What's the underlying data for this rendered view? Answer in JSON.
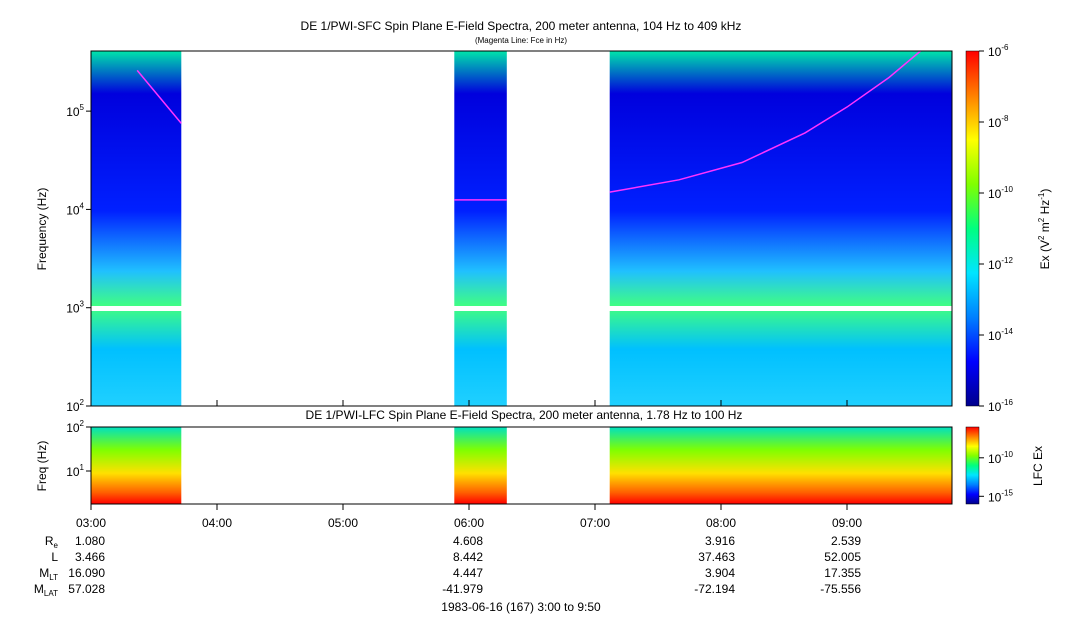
{
  "chart_data": [
    {
      "type": "heatmap",
      "title": "DE 1/PWI-SFC  Spin Plane E-Field Spectra, 200 meter antenna, 104 Hz to 409 kHz",
      "subtitle": "(Magenta Line: Fce in Hz)",
      "ylabel": "Frequency (Hz)",
      "y_scale": "log",
      "ylim": [
        100,
        409000
      ],
      "y_tick_labels": [
        {
          "base": "10",
          "exp": "2",
          "value": 100
        },
        {
          "base": "10",
          "exp": "3",
          "value": 1000
        },
        {
          "base": "10",
          "exp": "4",
          "value": 10000
        },
        {
          "base": "10",
          "exp": "5",
          "value": 100000
        }
      ],
      "xlim": [
        "03:00",
        "09:50"
      ],
      "data_coverage": [
        [
          "03:00",
          "03:43"
        ],
        [
          "05:53",
          "06:18"
        ],
        [
          "07:07",
          "09:50"
        ]
      ],
      "fce_line": {
        "color": "#ff33ff",
        "segments": [
          {
            "x": [
              "03:22",
              "03:43"
            ],
            "y": [
              260000,
              75000
            ]
          },
          {
            "x": [
              "05:53",
              "06:18"
            ],
            "y": [
              12500,
              12500
            ]
          },
          {
            "x": [
              "07:07",
              "07:40",
              "08:10",
              "08:40",
              "09:00",
              "09:20",
              "09:35"
            ],
            "y": [
              15000,
              20000,
              30000,
              60000,
              110000,
              220000,
              409000
            ]
          }
        ]
      },
      "colorbar": {
        "label": "Ex (V",
        "label_sup1": "2",
        "label_mid": " m",
        "label_sup2": "2",
        "label_mid2": " Hz",
        "label_sup3": "-1",
        "label_end": ")",
        "scale": "log",
        "range": [
          1e-16,
          1e-06
        ],
        "tick_labels": [
          {
            "base": "10",
            "exp": "-6",
            "value": 1e-06
          },
          {
            "base": "10",
            "exp": "-8",
            "value": 1e-08
          },
          {
            "base": "10",
            "exp": "-10",
            "value": 1e-10
          },
          {
            "base": "10",
            "exp": "-12",
            "value": 1e-12
          },
          {
            "base": "10",
            "exp": "-14",
            "value": 1e-14
          },
          {
            "base": "10",
            "exp": "-16",
            "value": 1e-16
          }
        ],
        "colormap": [
          "#00008b",
          "#0000ff",
          "#0080ff",
          "#00e5ff",
          "#00ff80",
          "#80ff00",
          "#ffff00",
          "#ff8000",
          "#ff0000"
        ]
      }
    },
    {
      "type": "heatmap",
      "title": "DE 1/PWI-LFC  Spin Plane E-Field Spectra, 200 meter antenna, 1.78 Hz to 100 Hz",
      "ylabel": "Freq (Hz)",
      "y_scale": "log",
      "ylim": [
        1.78,
        100
      ],
      "y_tick_labels": [
        {
          "base": "10",
          "exp": "1",
          "value": 10
        },
        {
          "base": "10",
          "exp": "2",
          "value": 100
        }
      ],
      "xlim": [
        "03:00",
        "09:50"
      ],
      "data_coverage": [
        [
          "03:00",
          "03:43"
        ],
        [
          "05:53",
          "06:18"
        ],
        [
          "07:07",
          "09:50"
        ]
      ],
      "colorbar": {
        "label": "LFC Ex",
        "scale": "log",
        "range": [
          1e-16,
          1e-06
        ],
        "tick_labels": [
          {
            "base": "10",
            "exp": "-10",
            "value": 1e-10
          },
          {
            "base": "10",
            "exp": "-15",
            "value": 1e-15
          }
        ]
      },
      "x_tick_labels": [
        "03:00",
        "04:00",
        "05:00",
        "06:00",
        "07:00",
        "08:00",
        "09:00"
      ]
    }
  ],
  "ephemeris": {
    "rows": [
      {
        "label": "R",
        "sub": "e",
        "values": [
          "1.080",
          "4.608",
          "3.916",
          "2.539"
        ]
      },
      {
        "label": "L",
        "sub": "",
        "values": [
          "3.466",
          "8.442",
          "37.463",
          "52.005"
        ]
      },
      {
        "label": "M",
        "sub": "LT",
        "values": [
          "16.090",
          "4.447",
          "3.904",
          "17.355"
        ]
      },
      {
        "label": "M",
        "sub": "LAT",
        "values": [
          "57.028",
          "-41.979",
          "-72.194",
          "-75.556"
        ]
      }
    ],
    "columns": [
      "03:00",
      "06:00",
      "08:00",
      "09:00"
    ]
  },
  "footer": "1983-06-16 (167) 3:00 to 9:50"
}
